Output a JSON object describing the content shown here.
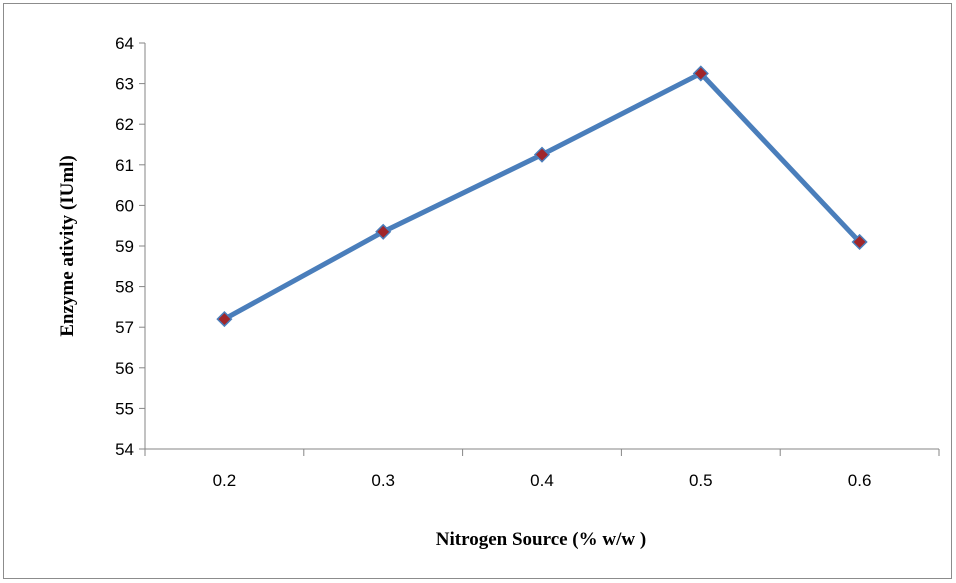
{
  "chart_data": {
    "type": "line",
    "x": [
      "0.2",
      "0.3",
      "0.4",
      "0.5",
      "0.6"
    ],
    "series": [
      {
        "values": [
          57.2,
          59.35,
          61.25,
          63.25,
          59.1
        ]
      }
    ],
    "xlabel": "Nitrogen Source (% w/w )",
    "ylabel": "Enzyme ativity (IUml)",
    "ylim": [
      54,
      64
    ],
    "yticks": [
      54,
      55,
      56,
      57,
      58,
      59,
      60,
      61,
      62,
      63,
      64
    ],
    "grid": false,
    "legend": "none",
    "colors": {
      "line": "#4a7ebb",
      "marker_fill": "#a0262a",
      "marker_stroke": "#4a7ebb",
      "axis": "#868686"
    }
  }
}
